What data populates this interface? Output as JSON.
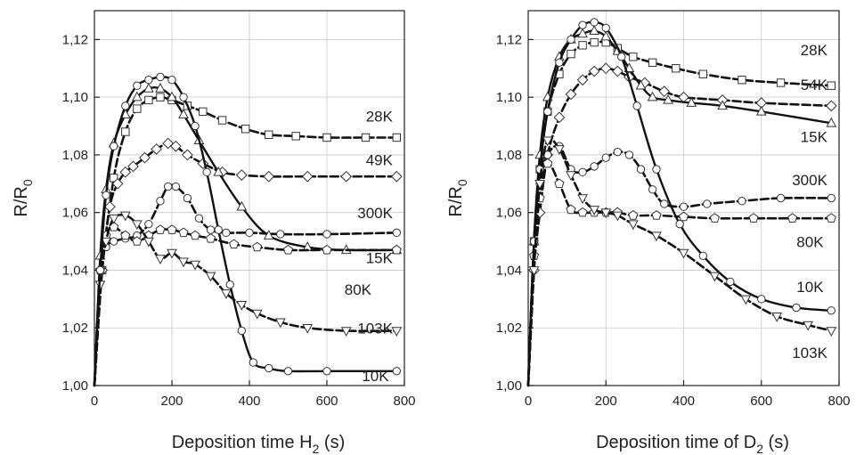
{
  "chart_data": [
    {
      "type": "line",
      "xlabel": "Deposition time H",
      "xlabel_sub": "2",
      "xlabel_tail": " (s)",
      "ylabel": "R/R",
      "ylabel_sub": "0",
      "xlim": [
        0,
        800
      ],
      "ylim": [
        1.0,
        1.13
      ],
      "xticks": [
        0,
        200,
        400,
        600,
        800
      ],
      "yticks": [
        1.0,
        1.02,
        1.04,
        1.06,
        1.08,
        1.1,
        1.12
      ],
      "xtick_labels": [
        "0",
        "200",
        "400",
        "600",
        "800"
      ],
      "ytick_labels": [
        "1,00",
        "1,02",
        "1,04",
        "1,06",
        "1,08",
        "1,10",
        "1,12"
      ],
      "grid": true,
      "series": [
        {
          "name": "28K",
          "marker": "square",
          "dashed": true,
          "label_at": [
            770,
            1.0915
          ],
          "x": [
            0,
            20,
            50,
            80,
            110,
            140,
            170,
            200,
            240,
            280,
            330,
            390,
            450,
            520,
            600,
            700,
            780
          ],
          "y": [
            1.0,
            1.04,
            1.072,
            1.088,
            1.096,
            1.099,
            1.1,
            1.099,
            1.097,
            1.095,
            1.092,
            1.089,
            1.087,
            1.0865,
            1.086,
            1.086,
            1.086
          ]
        },
        {
          "name": "49K",
          "marker": "diamond",
          "dashed": true,
          "label_at": [
            770,
            1.0765
          ],
          "x": [
            0,
            20,
            40,
            60,
            80,
            100,
            130,
            160,
            190,
            210,
            240,
            280,
            330,
            380,
            450,
            550,
            650,
            780
          ],
          "y": [
            1.0,
            1.04,
            1.062,
            1.07,
            1.074,
            1.076,
            1.079,
            1.082,
            1.084,
            1.083,
            1.08,
            1.077,
            1.074,
            1.073,
            1.0725,
            1.0725,
            1.0725,
            1.0725
          ]
        },
        {
          "name": "300K",
          "marker": "circle",
          "dashed": true,
          "label_at": [
            770,
            1.058
          ],
          "x": [
            0,
            15,
            30,
            50,
            80,
            110,
            140,
            170,
            190,
            210,
            240,
            270,
            300,
            340,
            400,
            480,
            600,
            780
          ],
          "y": [
            1.0,
            1.04,
            1.048,
            1.05,
            1.051,
            1.052,
            1.056,
            1.064,
            1.069,
            1.069,
            1.065,
            1.058,
            1.054,
            1.053,
            1.053,
            1.0525,
            1.0525,
            1.053
          ]
        },
        {
          "name": "15K",
          "marker": "triangle-up",
          "dashed": false,
          "label_at": [
            770,
            1.0425
          ],
          "x": [
            0,
            15,
            30,
            50,
            80,
            110,
            140,
            170,
            200,
            230,
            270,
            320,
            380,
            450,
            550,
            650,
            780
          ],
          "y": [
            1.0,
            1.045,
            1.068,
            1.084,
            1.094,
            1.1,
            1.103,
            1.103,
            1.1,
            1.094,
            1.085,
            1.074,
            1.062,
            1.052,
            1.048,
            1.047,
            1.047
          ]
        },
        {
          "name": "80K",
          "marker": "pentagon",
          "dashed": true,
          "label_at": [
            715,
            1.0315
          ],
          "x": [
            0,
            15,
            30,
            50,
            80,
            110,
            140,
            170,
            200,
            230,
            260,
            300,
            360,
            420,
            500,
            600,
            780
          ],
          "y": [
            1.0,
            1.04,
            1.052,
            1.055,
            1.052,
            1.05,
            1.052,
            1.054,
            1.054,
            1.053,
            1.052,
            1.051,
            1.049,
            1.048,
            1.047,
            1.047,
            1.047
          ]
        },
        {
          "name": "103K",
          "marker": "triangle-down",
          "dashed": true,
          "label_at": [
            770,
            1.018
          ],
          "x": [
            0,
            15,
            30,
            50,
            80,
            110,
            140,
            170,
            200,
            230,
            260,
            300,
            340,
            380,
            420,
            480,
            550,
            650,
            780
          ],
          "y": [
            1.0,
            1.035,
            1.05,
            1.058,
            1.059,
            1.056,
            1.05,
            1.044,
            1.046,
            1.043,
            1.042,
            1.038,
            1.032,
            1.028,
            1.025,
            1.022,
            1.02,
            1.019,
            1.019
          ]
        },
        {
          "name": "10K",
          "marker": "circle",
          "dashed": false,
          "label_at": [
            760,
            1.0015
          ],
          "x": [
            0,
            15,
            30,
            50,
            80,
            110,
            140,
            170,
            200,
            230,
            260,
            290,
            320,
            350,
            380,
            410,
            450,
            500,
            600,
            780
          ],
          "y": [
            1.0,
            1.04,
            1.066,
            1.083,
            1.097,
            1.104,
            1.106,
            1.107,
            1.106,
            1.1,
            1.09,
            1.074,
            1.054,
            1.035,
            1.019,
            1.008,
            1.006,
            1.005,
            1.005,
            1.005
          ]
        }
      ]
    },
    {
      "type": "line",
      "xlabel": "Deposition time of D",
      "xlabel_sub": "2",
      "xlabel_tail": " (s)",
      "ylabel": "R/R",
      "ylabel_sub": "0",
      "xlim": [
        0,
        800
      ],
      "ylim": [
        1.0,
        1.13
      ],
      "xticks": [
        0,
        200,
        400,
        600,
        800
      ],
      "yticks": [
        1.0,
        1.02,
        1.04,
        1.06,
        1.08,
        1.1,
        1.12
      ],
      "xtick_labels": [
        "0",
        "200",
        "400",
        "600",
        "800"
      ],
      "ytick_labels": [
        "1,00",
        "1,02",
        "1,04",
        "1,06",
        "1,08",
        "1,10",
        "1,12"
      ],
      "grid": true,
      "series": [
        {
          "name": "28K",
          "marker": "square",
          "dashed": true,
          "label_at": [
            770,
            1.1145
          ],
          "x": [
            0,
            15,
            30,
            50,
            80,
            110,
            140,
            170,
            200,
            230,
            270,
            320,
            380,
            450,
            550,
            650,
            780
          ],
          "y": [
            1.0,
            1.05,
            1.075,
            1.095,
            1.108,
            1.115,
            1.118,
            1.119,
            1.119,
            1.117,
            1.114,
            1.112,
            1.11,
            1.108,
            1.106,
            1.105,
            1.104
          ]
        },
        {
          "name": "54K",
          "marker": "diamond",
          "dashed": true,
          "label_at": [
            770,
            1.1025
          ],
          "x": [
            0,
            15,
            30,
            50,
            80,
            110,
            140,
            170,
            200,
            230,
            260,
            300,
            350,
            400,
            500,
            600,
            780
          ],
          "y": [
            1.0,
            1.04,
            1.06,
            1.08,
            1.093,
            1.101,
            1.106,
            1.109,
            1.11,
            1.109,
            1.107,
            1.105,
            1.102,
            1.1,
            1.099,
            1.098,
            1.097
          ]
        },
        {
          "name": "15K",
          "marker": "triangle-up",
          "dashed": false,
          "label_at": [
            770,
            1.0845
          ],
          "x": [
            0,
            15,
            30,
            50,
            80,
            110,
            140,
            170,
            200,
            230,
            260,
            290,
            320,
            360,
            420,
            500,
            600,
            780
          ],
          "y": [
            1.0,
            1.05,
            1.08,
            1.1,
            1.114,
            1.12,
            1.122,
            1.123,
            1.121,
            1.116,
            1.11,
            1.104,
            1.1,
            1.099,
            1.098,
            1.097,
            1.095,
            1.091
          ]
        },
        {
          "name": "300K",
          "marker": "circle",
          "dashed": true,
          "label_at": [
            770,
            1.0695
          ],
          "x": [
            0,
            15,
            30,
            50,
            80,
            110,
            140,
            170,
            200,
            230,
            260,
            290,
            320,
            350,
            400,
            460,
            550,
            650,
            780
          ],
          "y": [
            1.0,
            1.05,
            1.07,
            1.08,
            1.083,
            1.075,
            1.074,
            1.076,
            1.079,
            1.081,
            1.08,
            1.075,
            1.068,
            1.063,
            1.062,
            1.063,
            1.064,
            1.065,
            1.065
          ]
        },
        {
          "name": "80K",
          "marker": "pentagon",
          "dashed": true,
          "label_at": [
            760,
            1.048
          ],
          "x": [
            0,
            15,
            30,
            50,
            80,
            110,
            140,
            170,
            200,
            230,
            270,
            330,
            400,
            480,
            580,
            680,
            780
          ],
          "y": [
            1.0,
            1.045,
            1.065,
            1.077,
            1.07,
            1.061,
            1.06,
            1.06,
            1.06,
            1.06,
            1.059,
            1.059,
            1.0585,
            1.058,
            1.058,
            1.058,
            1.058
          ]
        },
        {
          "name": "10K",
          "marker": "circle",
          "dashed": false,
          "label_at": [
            760,
            1.0325
          ],
          "x": [
            0,
            15,
            30,
            50,
            80,
            110,
            140,
            170,
            200,
            240,
            280,
            330,
            390,
            450,
            520,
            600,
            690,
            780
          ],
          "y": [
            1.0,
            1.05,
            1.075,
            1.095,
            1.112,
            1.12,
            1.125,
            1.126,
            1.124,
            1.114,
            1.097,
            1.075,
            1.056,
            1.045,
            1.036,
            1.03,
            1.027,
            1.026
          ]
        },
        {
          "name": "103K",
          "marker": "triangle-down",
          "dashed": true,
          "label_at": [
            770,
            1.0095
          ],
          "x": [
            0,
            15,
            30,
            50,
            80,
            110,
            140,
            170,
            200,
            230,
            270,
            330,
            400,
            480,
            560,
            640,
            720,
            780
          ],
          "y": [
            1.0,
            1.04,
            1.07,
            1.085,
            1.082,
            1.073,
            1.065,
            1.061,
            1.06,
            1.059,
            1.056,
            1.052,
            1.046,
            1.038,
            1.03,
            1.024,
            1.021,
            1.019
          ]
        }
      ]
    }
  ]
}
